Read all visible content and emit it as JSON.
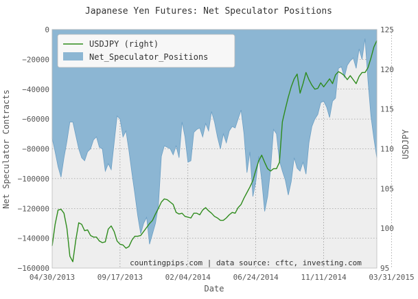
{
  "chart_data": {
    "type": "area",
    "title": "Japanese Yen Futures: Net Speculator Positions",
    "xlabel": "Date",
    "ylabel_left": "Net Speculator Contracts",
    "ylabel_right": "USDJPY",
    "annotation": "countingpips.com | data source: cftc, investing.com",
    "x_tick_labels": [
      "04/30/2013",
      "09/17/2013",
      "02/04/2014",
      "06/24/2014",
      "11/11/2014",
      "03/31/2015"
    ],
    "left_ylim": [
      -160000,
      0
    ],
    "left_ticks": [
      0,
      -20000,
      -40000,
      -60000,
      -80000,
      -100000,
      -120000,
      -140000,
      -160000
    ],
    "left_tick_labels": [
      "0",
      "−20000",
      "−40000",
      "−60000",
      "−80000",
      "−100000",
      "−120000",
      "−140000",
      "−160000"
    ],
    "right_ylim": [
      95,
      125
    ],
    "right_ticks": [
      95,
      100,
      105,
      110,
      115,
      120,
      125
    ],
    "right_tick_labels": [
      "95",
      "100",
      "105",
      "110",
      "115",
      "120",
      "125"
    ],
    "week_count": 111,
    "grid": true,
    "legend_position": "top-left",
    "series": [
      {
        "name": "Net_Speculator_Positions",
        "axis": "left",
        "type": "area",
        "color": "#8cb6d3",
        "values": [
          -73000,
          -82000,
          -92000,
          -99000,
          -86000,
          -75000,
          -62000,
          -62000,
          -71000,
          -80000,
          -86000,
          -88000,
          -82000,
          -80000,
          -74000,
          -72000,
          -79000,
          -80000,
          -95000,
          -90000,
          -94000,
          -76000,
          -58000,
          -60000,
          -72000,
          -68000,
          -81000,
          -96000,
          -110000,
          -125000,
          -137000,
          -130000,
          -126000,
          -144000,
          -137000,
          -130000,
          -118000,
          -85000,
          -78000,
          -79000,
          -80000,
          -84000,
          -78000,
          -86000,
          -62000,
          -72000,
          -89000,
          -88000,
          -69000,
          -67000,
          -66000,
          -72000,
          -63000,
          -68000,
          -55000,
          -62000,
          -72000,
          -80000,
          -70000,
          -76000,
          -68000,
          -65000,
          -66000,
          -60000,
          -54000,
          -70000,
          -96000,
          -82000,
          -112000,
          -102000,
          -85000,
          -101000,
          -122000,
          -112000,
          -94000,
          -67000,
          -70000,
          -88000,
          -95000,
          -101000,
          -111000,
          -102000,
          -86000,
          -93000,
          -95000,
          -89000,
          -97000,
          -76000,
          -65000,
          -60000,
          -57000,
          -49000,
          -48000,
          -52000,
          -59000,
          -48000,
          -46000,
          -26000,
          -25000,
          -32000,
          -24000,
          -21000,
          -19000,
          -26000,
          -13000,
          -20000,
          -6000,
          -34000,
          -58000,
          -73000,
          -86000
        ]
      },
      {
        "name": "USDJPY (right)",
        "axis": "right",
        "type": "line",
        "color": "#2e8b1c",
        "values": [
          97.8,
          100.5,
          102.3,
          102.4,
          101.9,
          100.0,
          96.5,
          95.8,
          98.5,
          100.7,
          100.5,
          99.7,
          99.8,
          99.1,
          98.9,
          98.9,
          98.4,
          98.2,
          98.3,
          99.9,
          100.3,
          99.6,
          98.4,
          98.0,
          97.9,
          97.5,
          97.7,
          98.5,
          99.0,
          99.0,
          99.1,
          99.6,
          100.1,
          100.6,
          101.0,
          101.8,
          102.5,
          103.3,
          103.7,
          103.6,
          103.3,
          103.0,
          102.0,
          101.8,
          101.9,
          101.5,
          101.4,
          101.3,
          101.9,
          101.9,
          101.7,
          102.3,
          102.6,
          102.2,
          101.9,
          101.5,
          101.3,
          101.0,
          101.0,
          101.3,
          101.7,
          102.0,
          101.9,
          102.6,
          103.0,
          103.8,
          104.5,
          105.2,
          106.0,
          107.3,
          108.5,
          109.2,
          108.3,
          107.5,
          107.2,
          107.5,
          107.5,
          108.3,
          113.4,
          115.0,
          116.5,
          117.8,
          118.8,
          119.4,
          117.0,
          118.2,
          119.6,
          118.7,
          118.0,
          117.5,
          117.6,
          118.3,
          117.8,
          118.3,
          118.8,
          118.2,
          119.3,
          119.7,
          119.5,
          119.2,
          118.7,
          119.2,
          118.7,
          118.2,
          119.1,
          119.6,
          119.6,
          120.2,
          121.4,
          122.8,
          123.6
        ]
      }
    ]
  }
}
